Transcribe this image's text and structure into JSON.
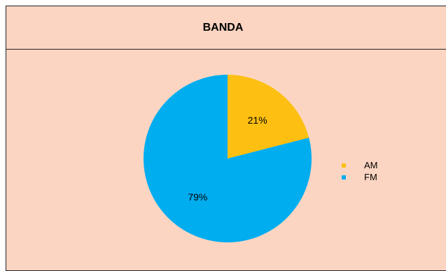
{
  "chart_data": {
    "type": "pie",
    "title": "BANDA",
    "categories": [
      "AM",
      "FM"
    ],
    "values": [
      21,
      79
    ],
    "labels": [
      "21%",
      "79%"
    ],
    "colors": [
      "#fdbf12",
      "#00adef"
    ],
    "legend_position": "right"
  },
  "colors": {
    "background": "#fcd5c2",
    "border": "#222222"
  }
}
